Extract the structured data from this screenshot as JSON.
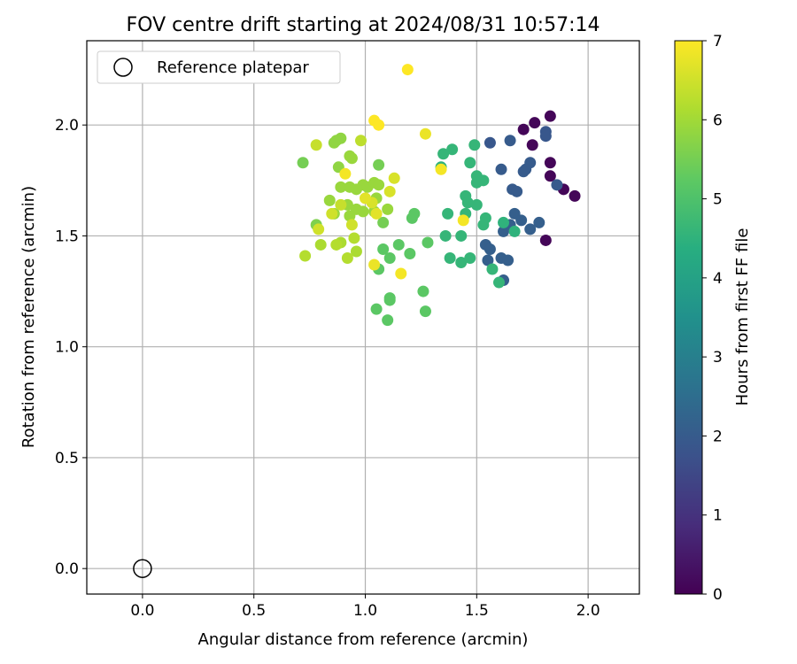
{
  "chart_data": {
    "type": "scatter",
    "title": "FOV centre drift starting at 2024/08/31 10:57:14",
    "xlabel": "Angular distance from reference (arcmin)",
    "ylabel": "Rotation from reference (arcmin)",
    "xlim": [
      -0.25,
      2.23
    ],
    "ylim": [
      -0.115,
      2.38
    ],
    "xticks": [
      "0.0",
      "0.5",
      "1.0",
      "1.5",
      "2.0"
    ],
    "yticks": [
      "0.0",
      "0.5",
      "1.0",
      "1.5",
      "2.0"
    ],
    "grid": true,
    "legend": {
      "position": "top-left",
      "entries": [
        "Reference platepar"
      ]
    },
    "reference_point": {
      "x": 0.0,
      "y": 0.0,
      "marker": "open-circle"
    },
    "colorbar": {
      "label": "Hours from first FF file",
      "range": [
        0,
        7
      ],
      "ticks": [
        "0",
        "1",
        "2",
        "3",
        "4",
        "5",
        "6",
        "7"
      ],
      "colormap": "viridis"
    },
    "points": [
      {
        "x": 1.71,
        "y": 1.98,
        "hours": 0.1
      },
      {
        "x": 1.76,
        "y": 2.01,
        "hours": 0.1
      },
      {
        "x": 1.83,
        "y": 2.04,
        "hours": 0.1
      },
      {
        "x": 1.75,
        "y": 1.91,
        "hours": 0.1
      },
      {
        "x": 1.83,
        "y": 1.83,
        "hours": 0.1
      },
      {
        "x": 1.83,
        "y": 1.77,
        "hours": 0.1
      },
      {
        "x": 1.89,
        "y": 1.71,
        "hours": 0.1
      },
      {
        "x": 1.94,
        "y": 1.68,
        "hours": 0.1
      },
      {
        "x": 1.81,
        "y": 1.48,
        "hours": 0.1
      },
      {
        "x": 1.81,
        "y": 1.97,
        "hours": 1.9
      },
      {
        "x": 1.81,
        "y": 1.95,
        "hours": 1.9
      },
      {
        "x": 1.65,
        "y": 1.93,
        "hours": 2.0
      },
      {
        "x": 1.56,
        "y": 1.92,
        "hours": 1.9
      },
      {
        "x": 1.74,
        "y": 1.83,
        "hours": 2.0
      },
      {
        "x": 1.72,
        "y": 1.8,
        "hours": 2.0
      },
      {
        "x": 1.71,
        "y": 1.79,
        "hours": 2.0
      },
      {
        "x": 1.61,
        "y": 1.8,
        "hours": 2.0
      },
      {
        "x": 1.86,
        "y": 1.73,
        "hours": 2.0
      },
      {
        "x": 1.66,
        "y": 1.71,
        "hours": 2.0
      },
      {
        "x": 1.68,
        "y": 1.7,
        "hours": 2.0
      },
      {
        "x": 1.67,
        "y": 1.6,
        "hours": 2.1
      },
      {
        "x": 1.65,
        "y": 1.55,
        "hours": 2.1
      },
      {
        "x": 1.7,
        "y": 1.57,
        "hours": 2.1
      },
      {
        "x": 1.78,
        "y": 1.56,
        "hours": 2.1
      },
      {
        "x": 1.74,
        "y": 1.53,
        "hours": 2.1
      },
      {
        "x": 1.62,
        "y": 1.52,
        "hours": 2.1
      },
      {
        "x": 1.54,
        "y": 1.46,
        "hours": 2.1
      },
      {
        "x": 1.56,
        "y": 1.44,
        "hours": 2.1
      },
      {
        "x": 1.55,
        "y": 1.39,
        "hours": 2.1
      },
      {
        "x": 1.61,
        "y": 1.4,
        "hours": 2.1
      },
      {
        "x": 1.64,
        "y": 1.39,
        "hours": 2.1
      },
      {
        "x": 1.62,
        "y": 1.3,
        "hours": 2.1
      },
      {
        "x": 1.49,
        "y": 1.91,
        "hours": 4.6
      },
      {
        "x": 1.39,
        "y": 1.89,
        "hours": 4.6
      },
      {
        "x": 1.35,
        "y": 1.87,
        "hours": 4.6
      },
      {
        "x": 1.34,
        "y": 1.81,
        "hours": 4.5
      },
      {
        "x": 1.47,
        "y": 1.83,
        "hours": 4.6
      },
      {
        "x": 1.5,
        "y": 1.77,
        "hours": 4.6
      },
      {
        "x": 1.5,
        "y": 1.74,
        "hours": 4.6
      },
      {
        "x": 1.53,
        "y": 1.75,
        "hours": 4.6
      },
      {
        "x": 1.45,
        "y": 1.68,
        "hours": 4.6
      },
      {
        "x": 1.46,
        "y": 1.65,
        "hours": 4.6
      },
      {
        "x": 1.5,
        "y": 1.64,
        "hours": 4.6
      },
      {
        "x": 1.37,
        "y": 1.6,
        "hours": 4.6
      },
      {
        "x": 1.45,
        "y": 1.6,
        "hours": 4.6
      },
      {
        "x": 1.54,
        "y": 1.58,
        "hours": 4.6
      },
      {
        "x": 1.53,
        "y": 1.55,
        "hours": 4.6
      },
      {
        "x": 1.62,
        "y": 1.56,
        "hours": 4.5
      },
      {
        "x": 1.67,
        "y": 1.52,
        "hours": 4.5
      },
      {
        "x": 1.36,
        "y": 1.5,
        "hours": 4.6
      },
      {
        "x": 1.43,
        "y": 1.5,
        "hours": 4.6
      },
      {
        "x": 1.38,
        "y": 1.4,
        "hours": 4.6
      },
      {
        "x": 1.43,
        "y": 1.38,
        "hours": 4.6
      },
      {
        "x": 1.47,
        "y": 1.4,
        "hours": 4.6
      },
      {
        "x": 1.57,
        "y": 1.35,
        "hours": 4.6
      },
      {
        "x": 1.6,
        "y": 1.29,
        "hours": 4.6
      },
      {
        "x": 1.21,
        "y": 1.58,
        "hours": 5.2
      },
      {
        "x": 1.22,
        "y": 1.6,
        "hours": 5.2
      },
      {
        "x": 1.28,
        "y": 1.47,
        "hours": 5.2
      },
      {
        "x": 1.15,
        "y": 1.46,
        "hours": 5.2
      },
      {
        "x": 1.2,
        "y": 1.42,
        "hours": 5.2
      },
      {
        "x": 1.08,
        "y": 1.44,
        "hours": 5.2
      },
      {
        "x": 1.06,
        "y": 1.35,
        "hours": 5.2
      },
      {
        "x": 1.11,
        "y": 1.4,
        "hours": 5.2
      },
      {
        "x": 1.26,
        "y": 1.25,
        "hours": 5.2
      },
      {
        "x": 1.11,
        "y": 1.22,
        "hours": 5.2
      },
      {
        "x": 1.11,
        "y": 1.21,
        "hours": 5.2
      },
      {
        "x": 1.05,
        "y": 1.17,
        "hours": 5.2
      },
      {
        "x": 1.27,
        "y": 1.16,
        "hours": 5.2
      },
      {
        "x": 1.1,
        "y": 1.12,
        "hours": 5.2
      },
      {
        "x": 0.72,
        "y": 1.83,
        "hours": 5.5
      },
      {
        "x": 1.06,
        "y": 1.82,
        "hours": 5.5
      },
      {
        "x": 1.08,
        "y": 1.56,
        "hours": 5.5
      },
      {
        "x": 0.78,
        "y": 1.55,
        "hours": 5.6
      },
      {
        "x": 0.86,
        "y": 1.92,
        "hours": 5.8
      },
      {
        "x": 0.87,
        "y": 1.93,
        "hours": 5.8
      },
      {
        "x": 0.89,
        "y": 1.94,
        "hours": 5.8
      },
      {
        "x": 0.88,
        "y": 1.81,
        "hours": 5.8
      },
      {
        "x": 0.94,
        "y": 1.85,
        "hours": 5.9
      },
      {
        "x": 0.93,
        "y": 1.86,
        "hours": 5.9
      },
      {
        "x": 0.89,
        "y": 1.72,
        "hours": 5.9
      },
      {
        "x": 0.93,
        "y": 1.72,
        "hours": 5.9
      },
      {
        "x": 0.96,
        "y": 1.71,
        "hours": 5.9
      },
      {
        "x": 0.99,
        "y": 1.73,
        "hours": 5.9
      },
      {
        "x": 1.01,
        "y": 1.72,
        "hours": 5.9
      },
      {
        "x": 1.04,
        "y": 1.74,
        "hours": 5.9
      },
      {
        "x": 1.06,
        "y": 1.73,
        "hours": 5.9
      },
      {
        "x": 1.05,
        "y": 1.67,
        "hours": 5.9
      },
      {
        "x": 0.84,
        "y": 1.66,
        "hours": 5.9
      },
      {
        "x": 0.92,
        "y": 1.64,
        "hours": 5.9
      },
      {
        "x": 0.96,
        "y": 1.62,
        "hours": 5.9
      },
      {
        "x": 0.99,
        "y": 1.61,
        "hours": 5.9
      },
      {
        "x": 1.04,
        "y": 1.61,
        "hours": 5.9
      },
      {
        "x": 1.1,
        "y": 1.62,
        "hours": 5.9
      },
      {
        "x": 0.86,
        "y": 1.6,
        "hours": 5.9
      },
      {
        "x": 0.93,
        "y": 1.59,
        "hours": 5.9
      },
      {
        "x": 0.8,
        "y": 1.46,
        "hours": 6.1
      },
      {
        "x": 0.89,
        "y": 1.47,
        "hours": 6.1
      },
      {
        "x": 0.95,
        "y": 1.49,
        "hours": 6.2
      },
      {
        "x": 0.87,
        "y": 1.46,
        "hours": 6.2
      },
      {
        "x": 0.96,
        "y": 1.43,
        "hours": 6.1
      },
      {
        "x": 0.73,
        "y": 1.41,
        "hours": 6.2
      },
      {
        "x": 0.92,
        "y": 1.4,
        "hours": 6.2
      },
      {
        "x": 0.78,
        "y": 1.91,
        "hours": 6.4
      },
      {
        "x": 0.98,
        "y": 1.93,
        "hours": 6.3
      },
      {
        "x": 0.89,
        "y": 1.64,
        "hours": 6.4
      },
      {
        "x": 0.94,
        "y": 1.55,
        "hours": 6.5
      },
      {
        "x": 0.85,
        "y": 1.6,
        "hours": 6.5
      },
      {
        "x": 0.79,
        "y": 1.53,
        "hours": 6.5
      },
      {
        "x": 1.11,
        "y": 1.7,
        "hours": 6.6
      },
      {
        "x": 1.13,
        "y": 1.76,
        "hours": 6.6
      },
      {
        "x": 1.03,
        "y": 1.65,
        "hours": 6.6
      },
      {
        "x": 1.0,
        "y": 1.67,
        "hours": 6.7
      },
      {
        "x": 1.05,
        "y": 1.6,
        "hours": 6.7
      },
      {
        "x": 1.04,
        "y": 1.37,
        "hours": 6.8
      },
      {
        "x": 1.16,
        "y": 1.33,
        "hours": 6.9
      },
      {
        "x": 1.27,
        "y": 1.96,
        "hours": 6.8
      },
      {
        "x": 1.34,
        "y": 1.8,
        "hours": 6.9
      },
      {
        "x": 1.44,
        "y": 1.57,
        "hours": 6.9
      },
      {
        "x": 1.04,
        "y": 2.02,
        "hours": 7.0
      },
      {
        "x": 1.06,
        "y": 2.0,
        "hours": 7.0
      },
      {
        "x": 0.91,
        "y": 1.78,
        "hours": 6.9
      },
      {
        "x": 1.19,
        "y": 2.25,
        "hours": 7.0
      }
    ]
  }
}
